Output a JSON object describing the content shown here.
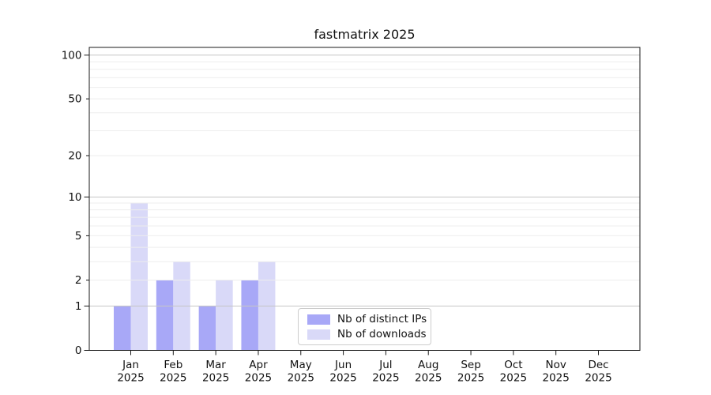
{
  "chart_data": {
    "type": "bar",
    "title": "fastmatrix 2025",
    "year_label": "2025",
    "categories": [
      "Jan",
      "Feb",
      "Mar",
      "Apr",
      "May",
      "Jun",
      "Jul",
      "Aug",
      "Sep",
      "Oct",
      "Nov",
      "Dec"
    ],
    "series": [
      {
        "name": "Nb of distinct IPs",
        "color": "#a8a8f7",
        "values": [
          1,
          2,
          1,
          2,
          0,
          0,
          0,
          0,
          0,
          0,
          0,
          0
        ]
      },
      {
        "name": "Nb of downloads",
        "color": "#d9d9f8",
        "values": [
          9,
          3,
          2,
          3,
          0,
          0,
          0,
          0,
          0,
          0,
          0,
          0
        ]
      }
    ],
    "xlabel": "",
    "ylabel": "",
    "y_axis": {
      "scale": "log1p",
      "ticks": [
        0,
        1,
        2,
        5,
        10,
        20,
        50,
        100
      ],
      "major_ticks": [
        0,
        1,
        10,
        100
      ],
      "max": 113
    },
    "grid": {
      "enabled": true,
      "major_lines": [
        1,
        10,
        100
      ],
      "minor_lines": [
        2,
        3,
        4,
        5,
        6,
        7,
        8,
        9,
        20,
        30,
        40,
        50,
        60,
        70,
        80,
        90
      ],
      "major_color": "#c6c6c6",
      "minor_color": "#ededed"
    },
    "legend": {
      "position": "inside-bottom-center"
    },
    "colors": {
      "background": "#ffffff",
      "spine": "#1a1a1a",
      "text": "#111111"
    }
  }
}
